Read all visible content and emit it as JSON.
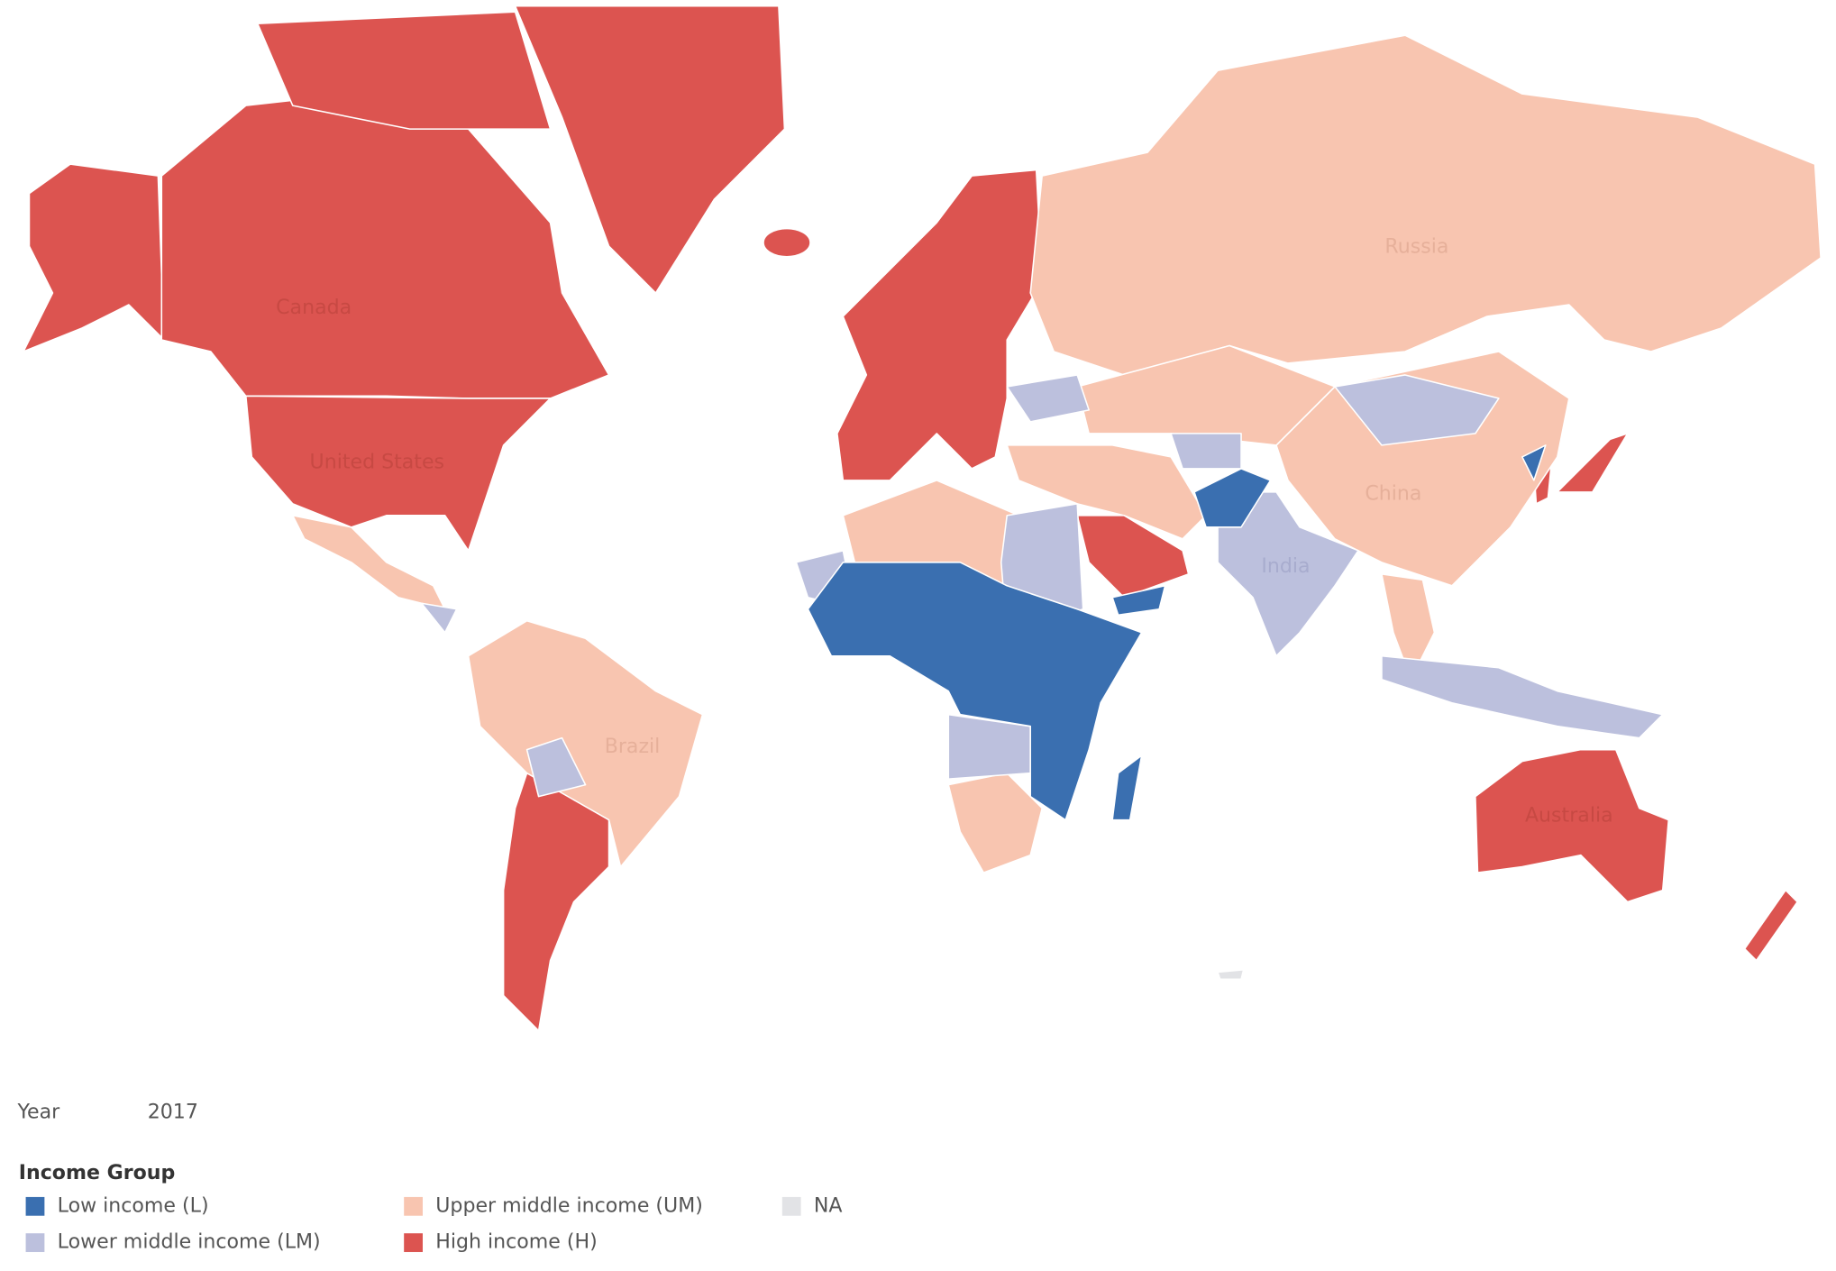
{
  "map": {
    "country_labels": [
      "Canada",
      "United States",
      "Russia",
      "China",
      "India",
      "Brazil",
      "Australia"
    ]
  },
  "filter": {
    "label": "Year",
    "value": "2017"
  },
  "legend": {
    "title": "Income Group",
    "items": [
      {
        "label": "Low income (L)",
        "color": "#3a6fb0"
      },
      {
        "label": "Upper middle income (UM)",
        "color": "#f8c5b0"
      },
      {
        "label": "NA",
        "color": "#e2e3e6"
      },
      {
        "label": "Lower middle income (LM)",
        "color": "#bcc0dd"
      },
      {
        "label": "High income (H)",
        "color": "#dc5450"
      }
    ]
  }
}
